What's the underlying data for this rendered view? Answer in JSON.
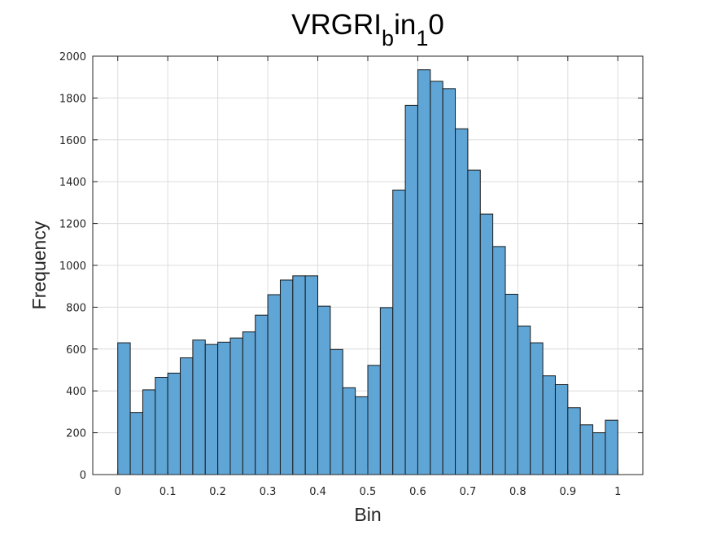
{
  "chart_data": {
    "type": "bar",
    "title_parts": [
      "VRGRI",
      "b",
      "in",
      "1",
      "0"
    ],
    "xlabel": "Bin",
    "ylabel": "Frequency",
    "xlim": [
      -0.05,
      1.05
    ],
    "ylim": [
      0,
      2000
    ],
    "xticks": [
      "0",
      "0.1",
      "0.2",
      "0.3",
      "0.4",
      "0.5",
      "0.6",
      "0.7",
      "0.8",
      "0.9",
      "1"
    ],
    "yticks": [
      "0",
      "200",
      "400",
      "600",
      "800",
      "1000",
      "1200",
      "1400",
      "1600",
      "1800",
      "2000"
    ],
    "grid": true,
    "bar_color": "#5fa5d6",
    "edge_color": "#1a1a1a",
    "bin_width": 0.025,
    "bin_start": 0,
    "values": [
      630,
      297,
      405,
      465,
      485,
      558,
      643,
      622,
      633,
      653,
      682,
      762,
      860,
      930,
      950,
      950,
      805,
      598,
      415,
      372,
      522,
      798,
      1360,
      1765,
      1935,
      1880,
      1845,
      1653,
      1455,
      1245,
      1090,
      862,
      710,
      630,
      472,
      430,
      320,
      238,
      200,
      260
    ]
  }
}
